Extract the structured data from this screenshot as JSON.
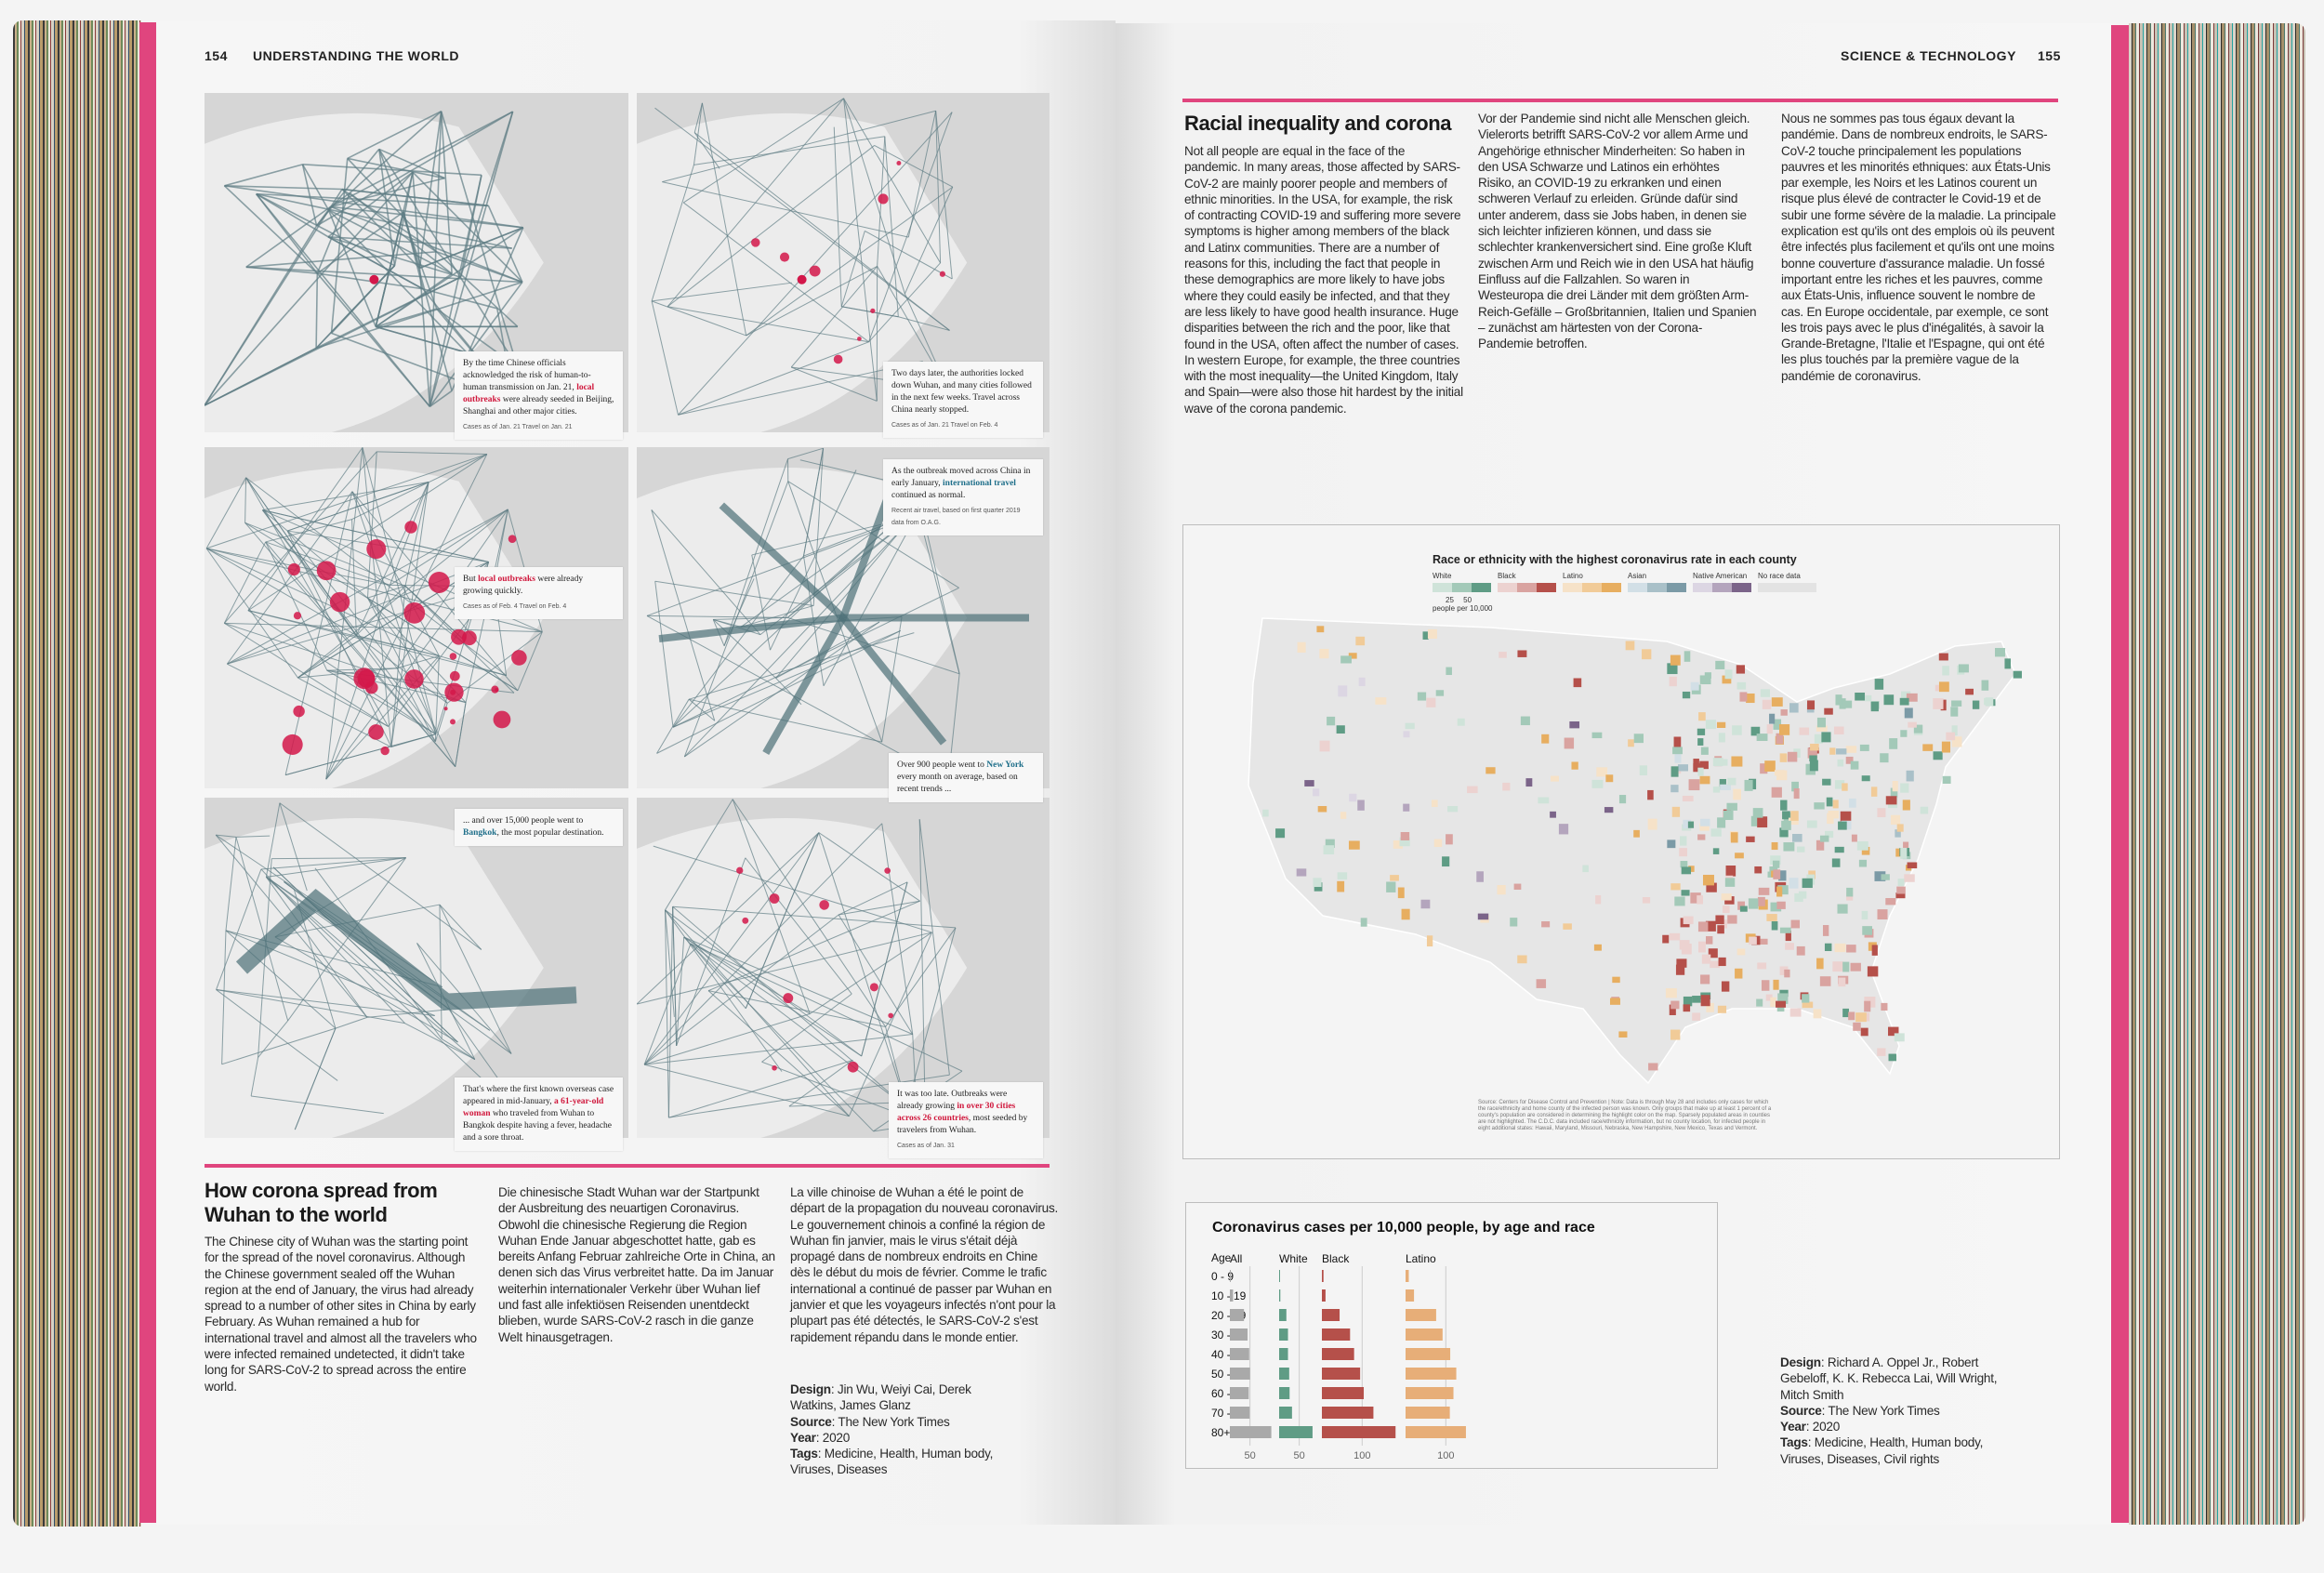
{
  "left_page": {
    "page_number": "154",
    "section": "UNDERSTANDING THE WORLD",
    "map_annotations": [
      {
        "before": "By the time Chinese officials acknowledged the risk of human-to-human transmission on Jan. 21, ",
        "highlight": "local outbreaks",
        "after": " were already seeded in Beijing, Shanghai and other major cities.",
        "highlight_color": "red",
        "key": "Cases as of Jan. 21   Travel on Jan. 21"
      },
      {
        "before": "Two days later, the authorities locked down Wuhan, and many cities followed in the next few weeks. Travel across China nearly stopped.",
        "highlight": "",
        "after": "",
        "highlight_color": "red",
        "key": "Cases as of Jan. 21   Travel on Feb. 4"
      },
      {
        "before": "But ",
        "highlight": "local outbreaks",
        "after": " were already growing quickly.",
        "highlight_color": "red",
        "key": "Cases as of Feb. 4   Travel on Feb. 4"
      },
      {
        "before": "As the outbreak moved across China in early January, ",
        "highlight": "international travel",
        "after": " continued as normal.",
        "highlight_color": "teal",
        "key": "Recent air travel, based on first quarter 2019 data from O.A.G."
      },
      {
        "before": "Over 900 people went to ",
        "highlight": "New York",
        "after": " every month on average, based on recent trends ...",
        "highlight_color": "teal",
        "key": ""
      },
      {
        "before": "... and over 15,000 people went to ",
        "highlight": "Bangkok",
        "after": ", the most popular destination.",
        "highlight_color": "teal",
        "key": ""
      },
      {
        "before": "That's where the first known overseas case appeared in mid-January, ",
        "highlight": "a 61-year-old woman",
        "after": " who traveled from Wuhan to Bangkok despite having a fever, headache and a sore throat.",
        "highlight_color": "red",
        "key": ""
      },
      {
        "before": "It was too late. Outbreaks were already growing ",
        "highlight": "in over 30 cities across 26 countries",
        "after": ", most seeded by travelers from Wuhan.",
        "highlight_color": "red",
        "key": "Cases as of Jan. 31"
      }
    ],
    "article": {
      "title": "How corona spread from Wuhan to the world",
      "en": "The Chinese city of Wuhan was the starting point for the spread of the novel coronavirus. Although the Chinese government sealed off the Wuhan region at the end of January, the virus had already spread to a number of other sites in China by early February. As Wuhan remained a hub for international travel and almost all the travelers who were infected remained undetected, it didn't take long for SARS-CoV-2 to spread across the entire world.",
      "de": "Die chinesische Stadt Wuhan war der Startpunkt der Ausbreitung des neuartigen Coronavirus. Obwohl die chinesische Regierung die Region Wuhan Ende Januar abgeschottet hatte, gab es bereits Anfang Februar zahlreiche Orte in China, an denen sich das Virus verbreitet hatte. Da im Januar weiterhin internationaler Verkehr über Wuhan lief und fast alle infektiösen Reisenden unentdeckt blieben, wurde SARS-CoV-2 rasch in die ganze Welt hinausgetragen.",
      "fr": "La ville chinoise de Wuhan a été le point de départ de la propagation du nouveau coronavirus. Le gouvernement chinois a confiné la région de Wuhan fin janvier, mais le virus s'était déjà propagé dans de nombreux endroits en Chine dès le début du mois de février. Comme le trafic international a continué de passer par Wuhan en janvier et que les voyageurs infectés n'ont pour la plupart pas été détectés, le SARS-CoV-2 s'est rapidement répandu dans le monde entier.",
      "credits": [
        {
          "label": "Design",
          "value": "Jin Wu, Weiyi Cai, Derek Watkins, James Glanz"
        },
        {
          "label": "Source",
          "value": "The New York Times"
        },
        {
          "label": "Year",
          "value": "2020"
        },
        {
          "label": "Tags",
          "value": "Medicine, Health, Human body, Viruses, Diseases"
        }
      ]
    }
  },
  "right_page": {
    "page_number": "155",
    "section": "SCIENCE & TECHNOLOGY",
    "article": {
      "title": "Racial inequality and corona",
      "en": "Not all people are equal in the face of the pandemic. In many areas, those affected by SARS-CoV-2 are mainly poorer people and members of ethnic minorities. In the USA, for example, the risk of contracting COVID-19 and suffering more severe symptoms is higher among members of the black and Latinx communities. There are a number of reasons for this, including the fact that people in these demographics are more likely to have jobs where they could easily be infected, and that they are less likely to have good health insurance. Huge disparities between the rich and the poor, like that found in the USA, often affect the number of cases. In western Europe, for example, the three countries with the most inequality—the United Kingdom, Italy and Spain—were also those hit hardest by the initial wave of the corona pandemic.",
      "de": "Vor der Pandemie sind nicht alle Menschen gleich. Vielerorts betrifft SARS-CoV-2 vor allem Arme und Angehörige ethnischer Minderheiten: So haben in den USA Schwarze und Latinos ein erhöhtes Risiko, an COVID-19 zu erkranken und einen schweren Verlauf zu erleiden. Gründe dafür sind unter anderem, dass sie Jobs haben, in denen sie sich leichter infizieren können, und dass sie schlechter krankenversichert sind. Eine große Kluft zwischen Arm und Reich wie in den USA hat häufig Einfluss auf die Fallzahlen. So waren in Westeuropa die drei Länder mit dem größten Arm-Reich-Gefälle – Großbritannien, Italien und Spanien – zunächst am härtesten von der Corona-Pandemie betroffen.",
      "fr": "Nous ne sommes pas tous égaux devant la pandémie. Dans de nombreux endroits, le SARS-CoV-2 touche principalement les populations pauvres et les minorités ethniques: aux États-Unis par exemple, les Noirs et les Latinos courent un risque plus élevé de contracter le Covid-19 et de subir une forme sévère de la maladie. La principale explication est qu'ils ont des emplois où ils peuvent être infectés plus facilement et qu'ils ont une moins bonne couverture d'assurance maladie. Un fossé important entre les riches et les pauvres, comme aux États-Unis, influence souvent le nombre de cas. En Europe occidentale, par exemple, ce sont les trois pays avec le plus d'inégalités, à savoir la Grande-Bretagne, l'Italie et l'Espagne, qui ont été les plus touchés par la première vague de la pandémie de coronavirus.",
      "credits": [
        {
          "label": "Design",
          "value": "Richard A. Oppel Jr., Robert Gebeloff, K. K. Rebecca Lai, Will Wright, Mitch Smith"
        },
        {
          "label": "Source",
          "value": "The New York Times"
        },
        {
          "label": "Year",
          "value": "2020"
        },
        {
          "label": "Tags",
          "value": "Medicine, Health, Human body, Viruses, Diseases, Civil rights"
        }
      ]
    },
    "us_map": {
      "title": "Race or ethnicity with the highest coronavirus rate in each county",
      "legend": [
        {
          "name": "White",
          "colors": [
            "#cfe3d9",
            "#a3c9b8",
            "#5f9c85"
          ]
        },
        {
          "name": "Black",
          "colors": [
            "#ecd2d0",
            "#d9a3a0",
            "#b5504a"
          ]
        },
        {
          "name": "Latino",
          "colors": [
            "#f6e2c8",
            "#f1cb98",
            "#e7ae60"
          ]
        },
        {
          "name": "Asian",
          "colors": [
            "#d2dfe6",
            "#a9c0c8",
            "#7b9aa6"
          ]
        },
        {
          "name": "Native American",
          "colors": [
            "#dcd6e3",
            "#b4a5bd",
            "#7b6489"
          ]
        },
        {
          "name": "No race data",
          "colors": [
            "#e3e3e3",
            "#e3e3e3",
            "#e3e3e3"
          ]
        }
      ],
      "scale_ticks": [
        "25",
        "50"
      ],
      "scale_unit": "people per 10,000",
      "source_note": "Source: Centers for Disease Control and Prevention | Note: Data is through May 28 and includes only cases for which the race/ethnicity and home county of the infected person was known. Only groups that make up at least 1 percent of a county's population are considered in determining the highlight color on the map. Sparsely populated areas in counties are not highlighted. The C.D.C. data included race/ethnicity information, but no county location, for infected people in eight additional states: Hawaii, Maryland, Missouri, Nebraska, New Hampshire, New Mexico, Texas and Vermont."
    },
    "chart_data": {
      "type": "bar",
      "title": "Coronavirus cases per 10,000 people, by age and race",
      "category_label": "Age",
      "categories": [
        "0 - 9",
        "10 - 19",
        "20 - 29",
        "30 - 39",
        "40 - 49",
        "50 - 59",
        "60 - 69",
        "70 - 79",
        "80+"
      ],
      "series": [
        {
          "name": "All",
          "color": "#a9a9a9",
          "tick": "50",
          "values": [
            2,
            8,
            35,
            44,
            48,
            50,
            47,
            49,
            103
          ]
        },
        {
          "name": "White",
          "color": "#5f9c85",
          "tick": "50",
          "values": [
            1,
            3,
            18,
            22,
            22,
            25,
            26,
            32,
            83
          ]
        },
        {
          "name": "Black",
          "color": "#b5504a",
          "tick": "100",
          "values": [
            4,
            9,
            44,
            70,
            80,
            95,
            104,
            128,
            183
          ]
        },
        {
          "name": "Latino",
          "color": "#e7ae78",
          "tick": "100",
          "values": [
            8,
            21,
            76,
            92,
            111,
            126,
            119,
            110,
            150
          ]
        }
      ],
      "orientation": "horizontal",
      "grid": true
    }
  }
}
